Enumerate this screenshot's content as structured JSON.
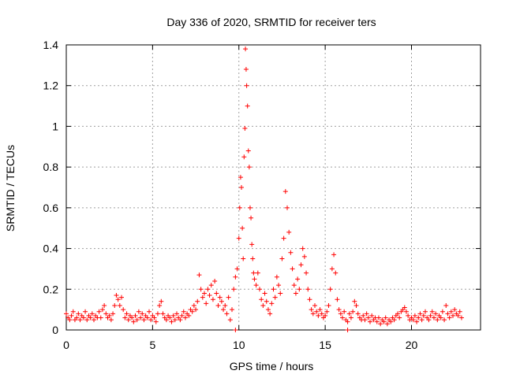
{
  "chart_data": {
    "type": "scatter",
    "title": "Day 336 of 2020, SRMTID for receiver ters",
    "xlabel": "GPS time / hours",
    "ylabel": "SRMTID / TECUs",
    "xlim": [
      0,
      24
    ],
    "ylim": [
      0,
      1.4
    ],
    "x_ticks": [
      0,
      5,
      10,
      15,
      20
    ],
    "x_tick_labels": [
      "0",
      "5",
      "10",
      "15",
      "20"
    ],
    "y_ticks": [
      0,
      0.2,
      0.4,
      0.6,
      0.8,
      1,
      1.2,
      1.4
    ],
    "y_tick_labels": [
      "0",
      "0.2",
      "0.4",
      "0.6",
      "0.8",
      "1",
      "1.2",
      "1.4"
    ],
    "grid": true,
    "marker": "+",
    "color": "#ff0000",
    "series": [
      {
        "name": "SRMTID",
        "points": [
          [
            0.0,
            0.08
          ],
          [
            0.1,
            0.06
          ],
          [
            0.2,
            0.05
          ],
          [
            0.3,
            0.07
          ],
          [
            0.4,
            0.09
          ],
          [
            0.5,
            0.05
          ],
          [
            0.6,
            0.06
          ],
          [
            0.7,
            0.08
          ],
          [
            0.8,
            0.05
          ],
          [
            0.9,
            0.07
          ],
          [
            1.0,
            0.06
          ],
          [
            1.1,
            0.09
          ],
          [
            1.2,
            0.05
          ],
          [
            1.3,
            0.07
          ],
          [
            1.4,
            0.06
          ],
          [
            1.5,
            0.08
          ],
          [
            1.6,
            0.05
          ],
          [
            1.7,
            0.07
          ],
          [
            1.8,
            0.06
          ],
          [
            1.9,
            0.09
          ],
          [
            2.0,
            0.06
          ],
          [
            2.1,
            0.1
          ],
          [
            2.2,
            0.12
          ],
          [
            2.3,
            0.08
          ],
          [
            2.4,
            0.06
          ],
          [
            2.5,
            0.07
          ],
          [
            2.6,
            0.05
          ],
          [
            2.7,
            0.08
          ],
          [
            2.8,
            0.12
          ],
          [
            2.9,
            0.17
          ],
          [
            3.0,
            0.15
          ],
          [
            3.1,
            0.12
          ],
          [
            3.2,
            0.16
          ],
          [
            3.3,
            0.1
          ],
          [
            3.4,
            0.06
          ],
          [
            3.5,
            0.08
          ],
          [
            3.6,
            0.05
          ],
          [
            3.7,
            0.07
          ],
          [
            3.8,
            0.06
          ],
          [
            3.9,
            0.04
          ],
          [
            4.0,
            0.07
          ],
          [
            4.1,
            0.05
          ],
          [
            4.2,
            0.09
          ],
          [
            4.3,
            0.06
          ],
          [
            4.4,
            0.08
          ],
          [
            4.5,
            0.05
          ],
          [
            4.6,
            0.07
          ],
          [
            4.7,
            0.06
          ],
          [
            4.8,
            0.09
          ],
          [
            4.9,
            0.05
          ],
          [
            5.0,
            0.07
          ],
          [
            5.1,
            0.06
          ],
          [
            5.2,
            0.04
          ],
          [
            5.3,
            0.08
          ],
          [
            5.4,
            0.12
          ],
          [
            5.5,
            0.14
          ],
          [
            5.6,
            0.08
          ],
          [
            5.7,
            0.06
          ],
          [
            5.8,
            0.05
          ],
          [
            5.9,
            0.07
          ],
          [
            6.0,
            0.06
          ],
          [
            6.1,
            0.04
          ],
          [
            6.2,
            0.07
          ],
          [
            6.3,
            0.05
          ],
          [
            6.4,
            0.08
          ],
          [
            6.5,
            0.06
          ],
          [
            6.6,
            0.05
          ],
          [
            6.7,
            0.07
          ],
          [
            6.8,
            0.09
          ],
          [
            6.9,
            0.06
          ],
          [
            7.0,
            0.08
          ],
          [
            7.1,
            0.07
          ],
          [
            7.2,
            0.1
          ],
          [
            7.3,
            0.09
          ],
          [
            7.4,
            0.12
          ],
          [
            7.5,
            0.1
          ],
          [
            7.6,
            0.14
          ],
          [
            7.7,
            0.27
          ],
          [
            7.8,
            0.2
          ],
          [
            7.9,
            0.16
          ],
          [
            8.0,
            0.18
          ],
          [
            8.1,
            0.13
          ],
          [
            8.2,
            0.2
          ],
          [
            8.3,
            0.17
          ],
          [
            8.4,
            0.22
          ],
          [
            8.5,
            0.15
          ],
          [
            8.6,
            0.24
          ],
          [
            8.7,
            0.18
          ],
          [
            8.8,
            0.12
          ],
          [
            8.9,
            0.16
          ],
          [
            9.0,
            0.14
          ],
          [
            9.1,
            0.1
          ],
          [
            9.2,
            0.12
          ],
          [
            9.3,
            0.08
          ],
          [
            9.4,
            0.16
          ],
          [
            9.5,
            0.05
          ],
          [
            9.6,
            0.1
          ],
          [
            9.7,
            0.2
          ],
          [
            9.8,
            0.26
          ],
          [
            9.9,
            0.3
          ],
          [
            10.0,
            0.45
          ],
          [
            10.05,
            0.6
          ],
          [
            10.1,
            0.75
          ],
          [
            10.15,
            0.7
          ],
          [
            10.2,
            0.5
          ],
          [
            10.25,
            0.35
          ],
          [
            10.3,
            0.85
          ],
          [
            10.35,
            0.99
          ],
          [
            10.38,
            1.38
          ],
          [
            10.42,
            1.28
          ],
          [
            10.45,
            1.2
          ],
          [
            10.5,
            1.1
          ],
          [
            10.55,
            0.88
          ],
          [
            10.6,
            0.8
          ],
          [
            10.65,
            0.6
          ],
          [
            10.7,
            0.55
          ],
          [
            10.75,
            0.42
          ],
          [
            10.8,
            0.35
          ],
          [
            10.85,
            0.28
          ],
          [
            10.9,
            0.25
          ],
          [
            11.0,
            0.22
          ],
          [
            11.1,
            0.28
          ],
          [
            11.2,
            0.2
          ],
          [
            11.3,
            0.15
          ],
          [
            11.4,
            0.12
          ],
          [
            11.5,
            0.18
          ],
          [
            11.6,
            0.14
          ],
          [
            11.7,
            0.1
          ],
          [
            11.8,
            0.08
          ],
          [
            11.9,
            0.13
          ],
          [
            12.0,
            0.2
          ],
          [
            12.1,
            0.16
          ],
          [
            12.2,
            0.26
          ],
          [
            12.3,
            0.22
          ],
          [
            12.4,
            0.18
          ],
          [
            12.5,
            0.35
          ],
          [
            12.6,
            0.45
          ],
          [
            12.7,
            0.68
          ],
          [
            12.8,
            0.6
          ],
          [
            12.9,
            0.48
          ],
          [
            13.0,
            0.38
          ],
          [
            13.1,
            0.3
          ],
          [
            13.2,
            0.22
          ],
          [
            13.3,
            0.18
          ],
          [
            13.4,
            0.25
          ],
          [
            13.5,
            0.2
          ],
          [
            13.6,
            0.32
          ],
          [
            13.7,
            0.4
          ],
          [
            13.8,
            0.36
          ],
          [
            13.9,
            0.28
          ],
          [
            14.0,
            0.2
          ],
          [
            14.1,
            0.15
          ],
          [
            14.2,
            0.1
          ],
          [
            14.3,
            0.08
          ],
          [
            14.4,
            0.12
          ],
          [
            14.5,
            0.09
          ],
          [
            14.6,
            0.07
          ],
          [
            14.7,
            0.1
          ],
          [
            14.8,
            0.08
          ],
          [
            14.9,
            0.06
          ],
          [
            15.0,
            0.07
          ],
          [
            15.1,
            0.09
          ],
          [
            15.2,
            0.12
          ],
          [
            15.3,
            0.2
          ],
          [
            15.4,
            0.3
          ],
          [
            15.5,
            0.37
          ],
          [
            15.6,
            0.28
          ],
          [
            15.7,
            0.15
          ],
          [
            15.8,
            0.1
          ],
          [
            15.9,
            0.08
          ],
          [
            16.0,
            0.06
          ],
          [
            16.1,
            0.09
          ],
          [
            16.2,
            0.05
          ],
          [
            16.3,
            0.04
          ],
          [
            16.4,
            0.08
          ],
          [
            16.5,
            0.06
          ],
          [
            16.6,
            0.09
          ],
          [
            16.7,
            0.14
          ],
          [
            16.8,
            0.12
          ],
          [
            16.9,
            0.08
          ],
          [
            17.0,
            0.06
          ],
          [
            17.1,
            0.05
          ],
          [
            17.2,
            0.07
          ],
          [
            17.3,
            0.05
          ],
          [
            17.4,
            0.08
          ],
          [
            17.5,
            0.06
          ],
          [
            17.6,
            0.04
          ],
          [
            17.7,
            0.07
          ],
          [
            17.8,
            0.05
          ],
          [
            17.9,
            0.06
          ],
          [
            18.0,
            0.04
          ],
          [
            18.1,
            0.06
          ],
          [
            18.2,
            0.03
          ],
          [
            18.3,
            0.05
          ],
          [
            18.4,
            0.04
          ],
          [
            18.5,
            0.06
          ],
          [
            18.6,
            0.03
          ],
          [
            18.7,
            0.05
          ],
          [
            18.8,
            0.04
          ],
          [
            18.9,
            0.06
          ],
          [
            19.0,
            0.05
          ],
          [
            19.1,
            0.07
          ],
          [
            19.2,
            0.08
          ],
          [
            19.3,
            0.06
          ],
          [
            19.4,
            0.09
          ],
          [
            19.5,
            0.1
          ],
          [
            19.6,
            0.11
          ],
          [
            19.7,
            0.09
          ],
          [
            19.8,
            0.07
          ],
          [
            19.9,
            0.05
          ],
          [
            20.0,
            0.06
          ],
          [
            20.1,
            0.05
          ],
          [
            20.2,
            0.07
          ],
          [
            20.3,
            0.04
          ],
          [
            20.4,
            0.06
          ],
          [
            20.5,
            0.08
          ],
          [
            20.6,
            0.05
          ],
          [
            20.7,
            0.07
          ],
          [
            20.8,
            0.09
          ],
          [
            20.9,
            0.06
          ],
          [
            21.0,
            0.05
          ],
          [
            21.1,
            0.07
          ],
          [
            21.2,
            0.09
          ],
          [
            21.3,
            0.06
          ],
          [
            21.4,
            0.08
          ],
          [
            21.5,
            0.05
          ],
          [
            21.6,
            0.07
          ],
          [
            21.7,
            0.06
          ],
          [
            21.8,
            0.09
          ],
          [
            21.9,
            0.05
          ],
          [
            22.0,
            0.12
          ],
          [
            22.1,
            0.08
          ],
          [
            22.2,
            0.06
          ],
          [
            22.3,
            0.09
          ],
          [
            22.4,
            0.07
          ],
          [
            22.5,
            0.1
          ],
          [
            22.6,
            0.08
          ],
          [
            22.7,
            0.07
          ],
          [
            22.8,
            0.09
          ],
          [
            22.9,
            0.06
          ],
          [
            9.8,
            0.0
          ],
          [
            16.3,
            0.0
          ]
        ]
      }
    ]
  }
}
